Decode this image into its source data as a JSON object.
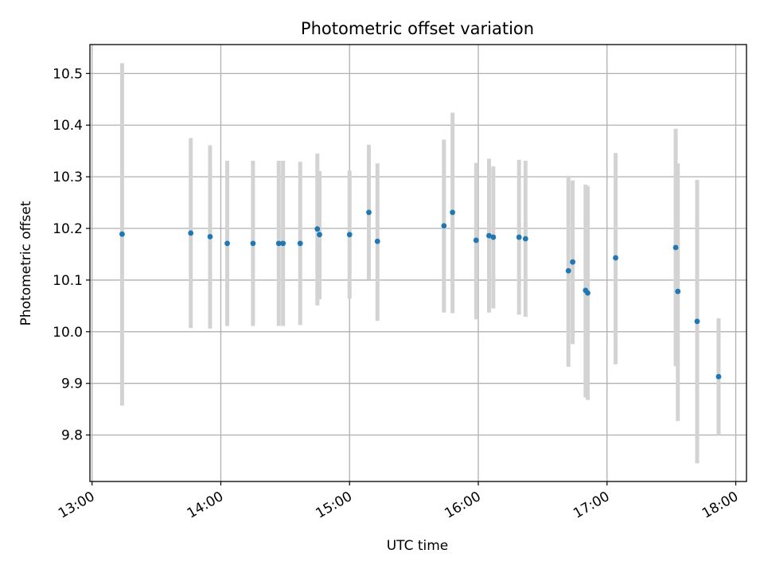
{
  "chart_data": {
    "type": "scatter",
    "title": "Photometric offset variation",
    "xlabel": "UTC time",
    "ylabel": "Photometric offset",
    "x_ticks": [
      "13:00",
      "14:00",
      "15:00",
      "16:00",
      "17:00",
      "18:00"
    ],
    "y_ticks": [
      "9.8",
      "9.9",
      "10.0",
      "10.1",
      "10.2",
      "10.3",
      "10.4",
      "10.5"
    ],
    "xlim": [
      "12:59",
      "18:05"
    ],
    "ylim": [
      9.71,
      10.556
    ],
    "grid": true,
    "colors": {
      "point": "#1f77b4",
      "errorbar": "#d3d3d3"
    },
    "series": [
      {
        "x": [
          "13:14",
          "13:46",
          "13:55",
          "14:03",
          "14:15",
          "14:27",
          "14:29",
          "14:37",
          "14:45",
          "14:46",
          "15:00",
          "15:09",
          "15:13",
          "15:44",
          "15:48",
          "15:59",
          "16:05",
          "16:07",
          "16:19",
          "16:22",
          "16:42",
          "16:44",
          "16:50",
          "16:51",
          "17:04",
          "17:32",
          "17:33",
          "17:42",
          "17:52"
        ],
        "y": [
          10.189,
          10.191,
          10.184,
          10.171,
          10.171,
          10.171,
          10.171,
          10.171,
          10.199,
          10.188,
          10.188,
          10.231,
          10.175,
          10.205,
          10.231,
          10.177,
          10.186,
          10.183,
          10.183,
          10.18,
          10.118,
          10.135,
          10.08,
          10.075,
          10.143,
          10.163,
          10.078,
          10.02,
          9.913
        ],
        "err_low": [
          9.857,
          10.007,
          10.006,
          10.011,
          10.011,
          10.011,
          10.011,
          10.013,
          10.051,
          10.063,
          10.064,
          10.101,
          10.021,
          10.037,
          10.036,
          10.024,
          10.037,
          10.045,
          10.033,
          10.029,
          9.932,
          9.976,
          9.873,
          9.868,
          9.937,
          9.933,
          9.827,
          9.745,
          9.8
        ],
        "err_high": [
          10.52,
          10.375,
          10.361,
          10.331,
          10.331,
          10.331,
          10.331,
          10.329,
          10.345,
          10.311,
          10.312,
          10.362,
          10.326,
          10.372,
          10.424,
          10.327,
          10.335,
          10.32,
          10.333,
          10.331,
          10.302,
          10.293,
          10.285,
          10.282,
          10.346,
          10.393,
          10.326,
          10.294,
          10.026
        ]
      }
    ]
  }
}
